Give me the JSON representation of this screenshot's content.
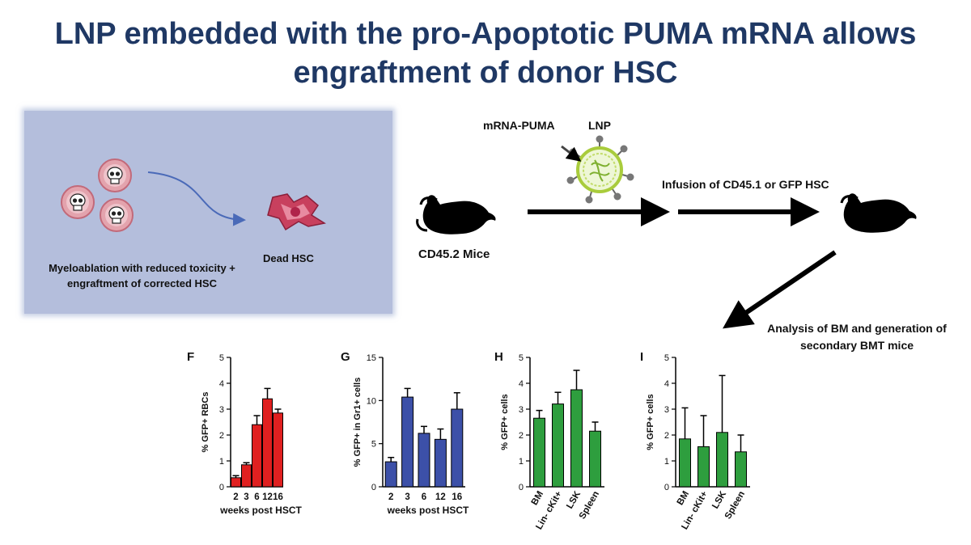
{
  "title_lines": [
    "LNP embedded with the pro-Apoptotic PUMA mRNA allows",
    "engraftment of donor HSC"
  ],
  "diagram": {
    "myeloablation_line1": "Myeloablation with reduced toxicity +",
    "myeloablation_line2": "engraftment of corrected HSC",
    "dead_hsc": "Dead HSC",
    "mrna_puma": "mRNA-PUMA",
    "lnp": "LNP",
    "infusion": "Infusion of CD45.1 or GFP HSC",
    "cd452_mice": "CD45.2 Mice",
    "analysis_line1": "Analysis of BM and generation of",
    "analysis_line2": "secondary BMT mice",
    "icons": [
      "skull-cell-icon",
      "dead-cell-icon",
      "mouse-icon",
      "lipid-nanoparticle-icon",
      "arrow-icon"
    ]
  },
  "chart_data": [
    {
      "type": "bar",
      "panel_letter": "F",
      "categories": [
        "2",
        "3",
        "6",
        "12",
        "16"
      ],
      "values": [
        0.35,
        0.85,
        2.4,
        3.4,
        2.85
      ],
      "errors": [
        0.08,
        0.08,
        0.35,
        0.4,
        0.15
      ],
      "xlabel": "weeks post HSCT",
      "ylabel": "% GFP+ RBCs",
      "ylim": [
        0,
        5
      ],
      "yticks": [
        "0",
        "1",
        "2",
        "3",
        "4",
        "5"
      ],
      "ytick_values": [
        0,
        1,
        2,
        3,
        4,
        5
      ],
      "color": "#e02020",
      "rotated_xticks": false
    },
    {
      "type": "bar",
      "panel_letter": "G",
      "categories": [
        "2",
        "3",
        "6",
        "12",
        "16"
      ],
      "values": [
        2.9,
        10.4,
        6.2,
        5.5,
        9.0
      ],
      "errors": [
        0.5,
        1.0,
        0.8,
        1.2,
        1.9
      ],
      "xlabel": "weeks post HSCT",
      "ylabel": "% GFP+ in Gr1+ cells",
      "ylim": [
        0,
        15
      ],
      "yticks": [
        "0",
        "5",
        "10",
        "15"
      ],
      "ytick_values": [
        0,
        5,
        10,
        15
      ],
      "color": "#3c50a8",
      "rotated_xticks": false
    },
    {
      "type": "bar",
      "panel_letter": "H",
      "categories": [
        "BM",
        "Lin- cKit+",
        "LSK",
        "Spleen"
      ],
      "values": [
        2.65,
        3.2,
        3.75,
        2.15
      ],
      "errors": [
        0.3,
        0.45,
        0.75,
        0.35
      ],
      "xlabel": "",
      "ylabel": "% GFP+ cells",
      "ylim": [
        0,
        5
      ],
      "yticks": [
        "0",
        "1",
        "2",
        "3",
        "4",
        "5"
      ],
      "ytick_values": [
        0,
        1,
        2,
        3,
        4,
        5
      ],
      "color": "#2e9e3e",
      "rotated_xticks": true
    },
    {
      "type": "bar",
      "panel_letter": "I",
      "categories": [
        "BM",
        "Lin- cKit+",
        "LSK",
        "Spleen"
      ],
      "values": [
        1.85,
        1.55,
        2.1,
        1.35
      ],
      "errors": [
        1.2,
        1.2,
        2.2,
        0.65
      ],
      "xlabel": "",
      "ylabel": "% GFP+ cells",
      "ylim": [
        0,
        5
      ],
      "yticks": [
        "0",
        "1",
        "2",
        "3",
        "4",
        "5"
      ],
      "ytick_values": [
        0,
        1,
        2,
        3,
        4,
        5
      ],
      "color": "#2e9e3e",
      "rotated_xticks": true
    }
  ]
}
